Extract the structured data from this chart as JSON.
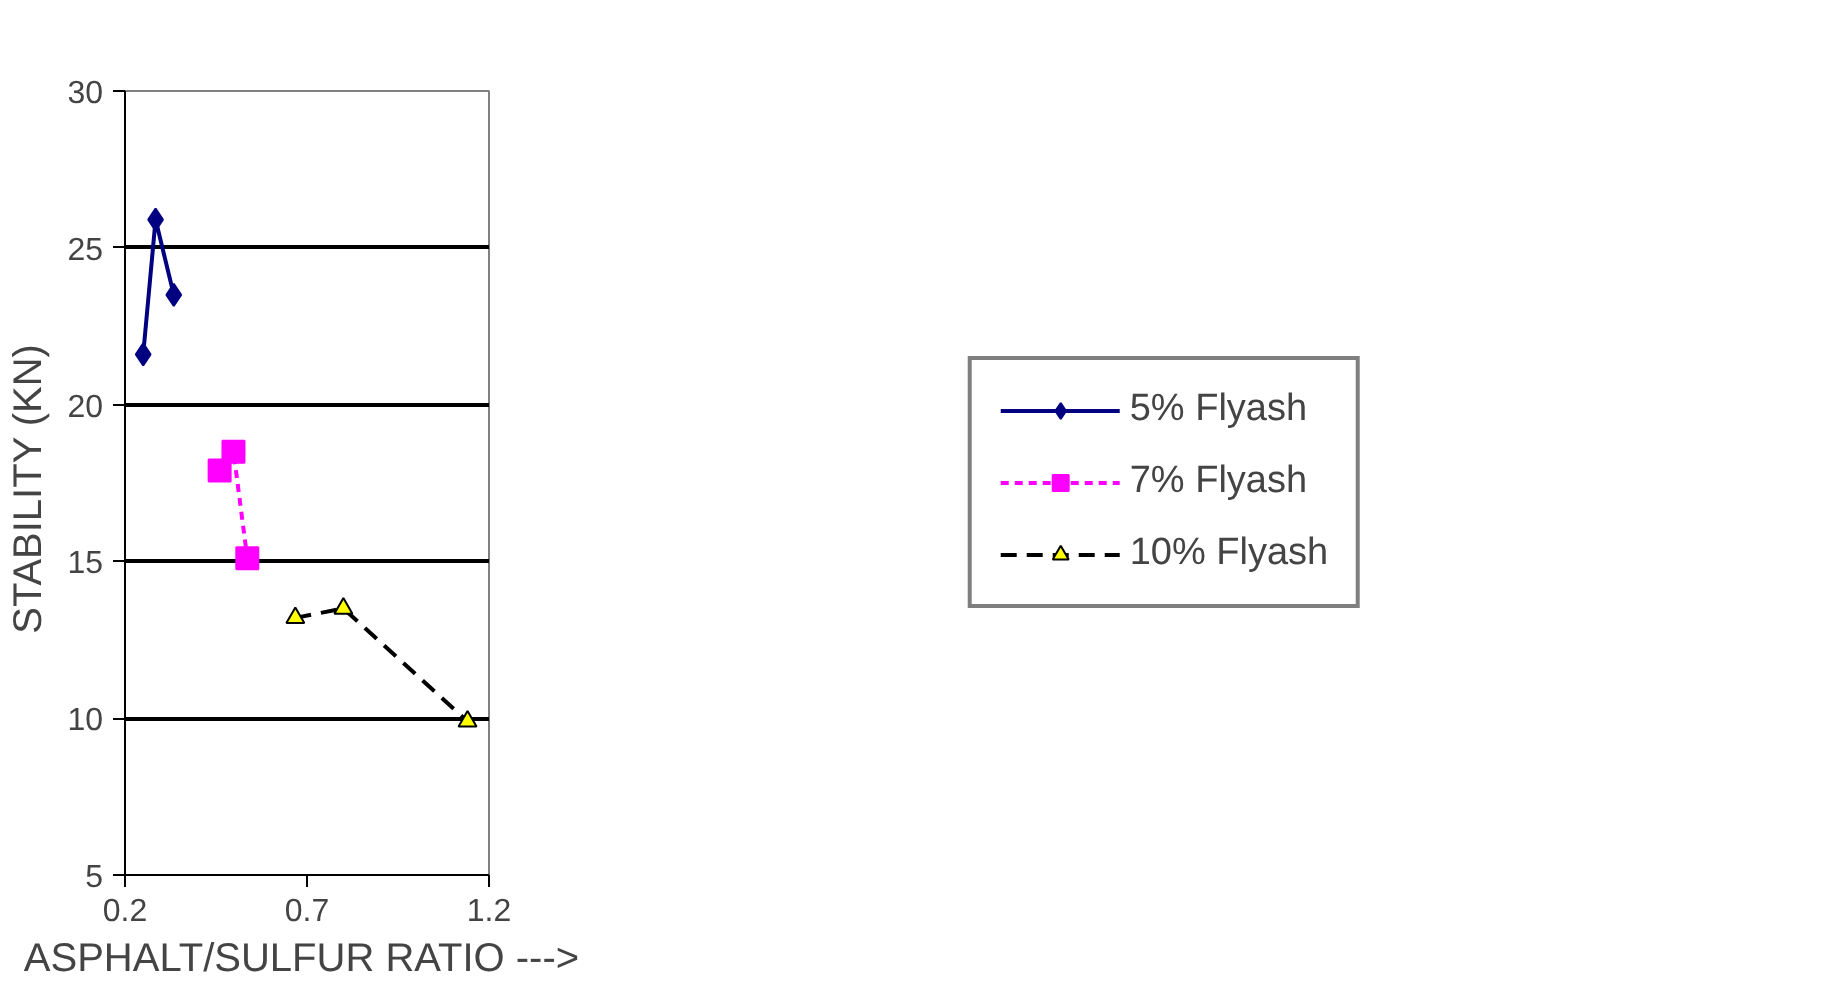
{
  "chart_data": {
    "type": "line",
    "xlabel": "ASPHALT/SULFUR  RATIO --->",
    "ylabel": "STABILITY  (KN)",
    "xlim": [
      0.2,
      1.2
    ],
    "xticks": [
      0.2,
      0.7,
      1.2
    ],
    "ylim": [
      5,
      30
    ],
    "yticks": [
      5,
      10,
      15,
      20,
      25,
      30
    ],
    "grid": "y",
    "legend": "right",
    "series": [
      {
        "name": "5% Flyash",
        "color": "#000080",
        "marker": "diamond",
        "line_style": "solid",
        "x": [
          0.25,
          0.284,
          0.334
        ],
        "values": [
          21.6,
          25.9,
          23.5
        ]
      },
      {
        "name": "7% Flyash",
        "color": "#ff00ff",
        "marker": "square",
        "line_style": "dotted",
        "x": [
          0.46,
          0.498,
          0.536
        ],
        "values": [
          17.9,
          18.5,
          15.1
        ]
      },
      {
        "name": "10% Flyash",
        "color": "#000000",
        "marker": "triangle",
        "line_style": "dashed",
        "x": [
          0.668,
          0.8,
          1.141
        ],
        "values": [
          13.2,
          13.5,
          9.9
        ]
      }
    ]
  }
}
